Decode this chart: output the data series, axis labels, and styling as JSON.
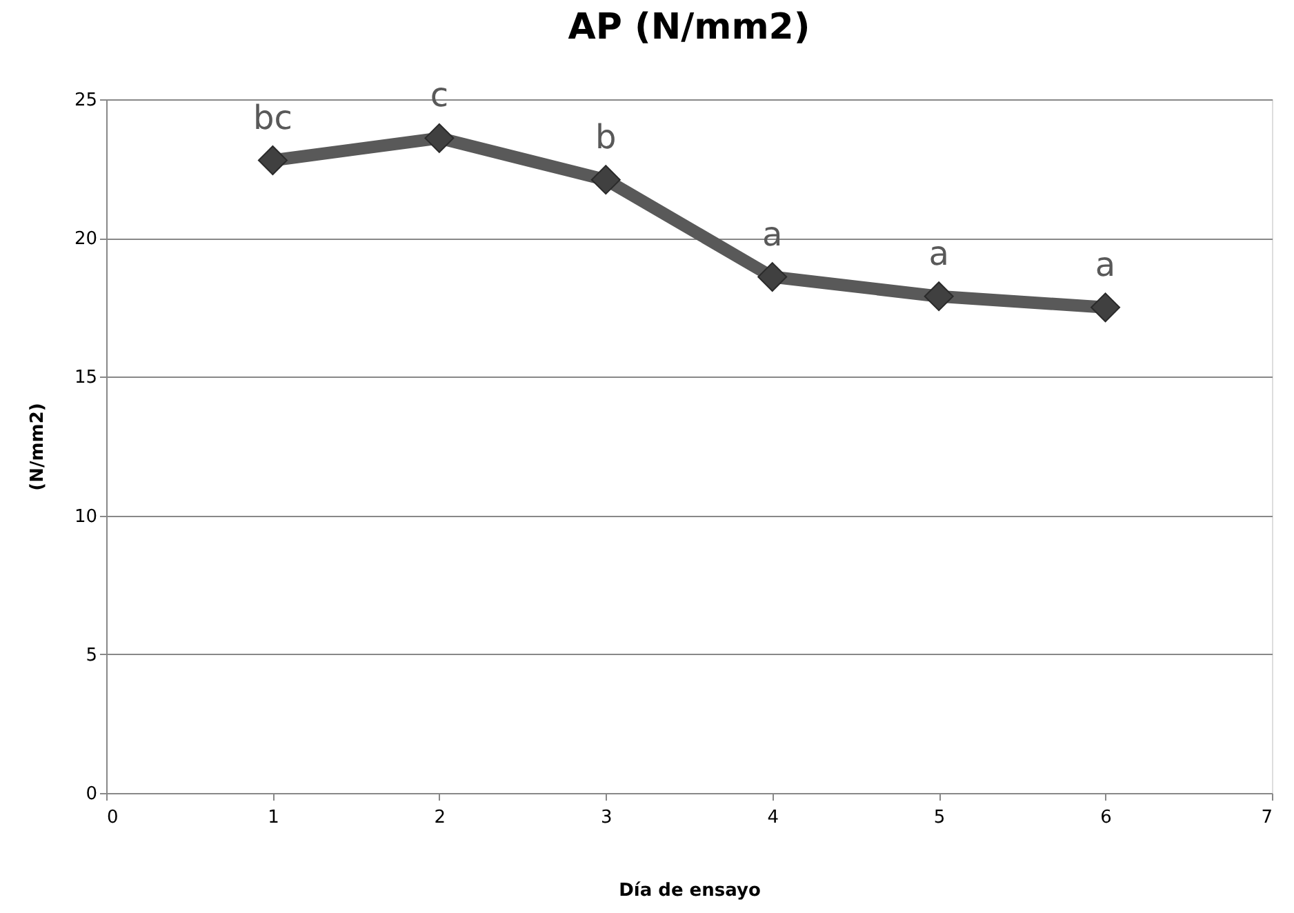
{
  "chart_data": {
    "type": "line",
    "title": "AP (N/mm2)",
    "xlabel": "Día de ensayo",
    "ylabel": "(N/mm2)",
    "x": [
      1,
      2,
      3,
      4,
      5,
      6
    ],
    "series": [
      {
        "color": "#595959",
        "values": [
          22.8,
          23.6,
          22.1,
          18.6,
          17.9,
          17.5
        ]
      }
    ],
    "xlim": [
      0,
      7
    ],
    "xticks": [
      0,
      1,
      2,
      3,
      4,
      5,
      6,
      7
    ],
    "ylim": [
      0,
      25
    ],
    "yticks": [
      0,
      5,
      10,
      15,
      20,
      25
    ],
    "grid": "y",
    "marker": "diamond",
    "line_style": "solid",
    "annotations": [
      {
        "text": "bc",
        "x": 1,
        "y": 22.8
      },
      {
        "text": "c",
        "x": 2,
        "y": 23.6
      },
      {
        "text": "b",
        "x": 3,
        "y": 22.1
      },
      {
        "text": "a",
        "x": 4,
        "y": 18.6
      },
      {
        "text": "a",
        "x": 5,
        "y": 17.9
      },
      {
        "text": "a",
        "x": 6,
        "y": 17.5
      }
    ]
  }
}
